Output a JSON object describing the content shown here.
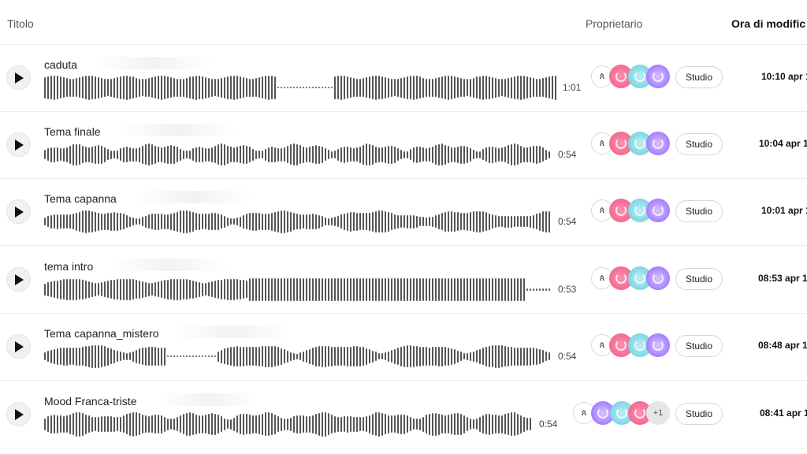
{
  "header": {
    "title_col": "Titolo",
    "owner_col": "Proprietario",
    "modified_col": "Ora di modific"
  },
  "rows": [
    {
      "title": "caduta",
      "duration": "1:01",
      "owners_more": "",
      "studio_label": "Studio",
      "modified": "10:10 apr 1"
    },
    {
      "title": "Tema finale",
      "duration": "0:54",
      "owners_more": "",
      "studio_label": "Studio",
      "modified": "10:04 apr 1"
    },
    {
      "title": "Tema capanna",
      "duration": "0:54",
      "owners_more": "",
      "studio_label": "Studio",
      "modified": "10:01 apr 1"
    },
    {
      "title": "tema intro",
      "duration": "0:53",
      "owners_more": "",
      "studio_label": "Studio",
      "modified": "08:53 apr 1"
    },
    {
      "title": "Tema capanna_mistero",
      "duration": "0:54",
      "owners_more": "",
      "studio_label": "Studio",
      "modified": "08:48 apr 1"
    },
    {
      "title": "Mood Franca-triste",
      "duration": "0:54",
      "owners_more": "+1",
      "studio_label": "Studio",
      "modified": "08:41 apr 1"
    }
  ],
  "icons": {
    "play": "play-icon",
    "owner_glyph": "owner-glyph-icon"
  },
  "colors": {
    "waveform": "#555555",
    "avatar_pink": "#f36a92",
    "avatar_teal": "#7ed6e2",
    "avatar_violet": "#a77dff"
  }
}
